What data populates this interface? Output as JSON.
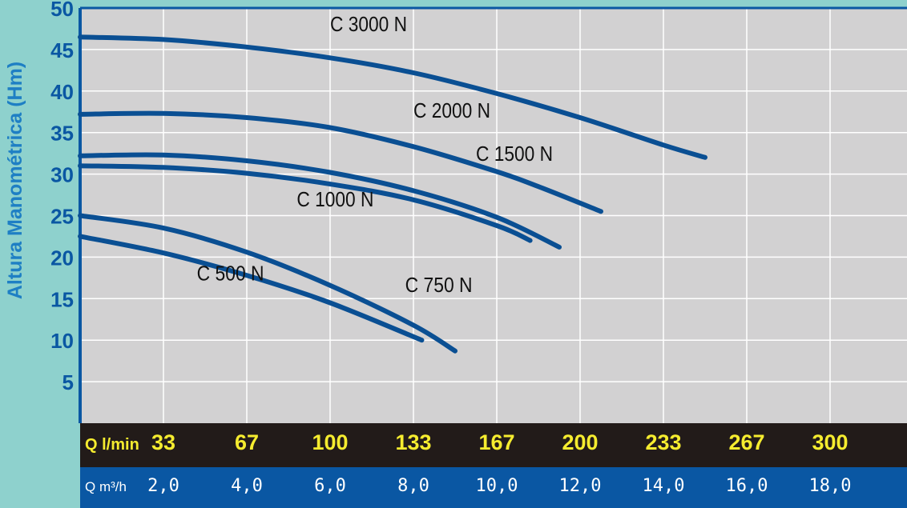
{
  "chart_data": {
    "type": "line",
    "title": "",
    "ylabel": "Altura Manométrica (Hm)",
    "xlabel": "",
    "ylim": [
      0,
      50
    ],
    "xlim": [
      0,
      20
    ],
    "grid": true,
    "yticks": [
      "5",
      "10",
      "15",
      "20",
      "25",
      "30",
      "35",
      "40",
      "45",
      "50"
    ],
    "x_axis_rows": [
      {
        "unit_main": "Q",
        "unit_rest": "l/min",
        "values": [
          "33",
          "67",
          "100",
          "133",
          "167",
          "200",
          "233",
          "267",
          "300"
        ]
      },
      {
        "unit_main": "Q",
        "unit_rest": "m³/h",
        "values": [
          "2,0",
          "4,0",
          "6,0",
          "8,0",
          "10,0",
          "12,0",
          "14,0",
          "16,0",
          "18,0"
        ]
      }
    ],
    "series": [
      {
        "name": "C 3000 N",
        "x": [
          0,
          2,
          4,
          6,
          8,
          10,
          12,
          14,
          15
        ],
        "y": [
          46.5,
          46.2,
          45.3,
          44.0,
          42.2,
          39.7,
          36.8,
          33.5,
          32
        ]
      },
      {
        "name": "C 2000 N",
        "x": [
          0,
          2,
          4,
          6,
          8,
          10,
          11,
          12.5
        ],
        "y": [
          37.2,
          37.3,
          36.8,
          35.6,
          33.3,
          30.3,
          28.5,
          25.5
        ]
      },
      {
        "name": "C 1500 N",
        "x": [
          0,
          2,
          4,
          6,
          8,
          10,
          11.5
        ],
        "y": [
          32.2,
          32.3,
          31.6,
          30.2,
          28.0,
          24.8,
          21.2
        ]
      },
      {
        "name": "C 1000 N",
        "x": [
          0,
          2,
          4,
          6,
          8,
          10,
          10.8
        ],
        "y": [
          31.0,
          30.8,
          30.1,
          28.8,
          26.9,
          23.8,
          22.0
        ]
      },
      {
        "name": "C 750 N",
        "x": [
          0,
          2,
          4,
          6,
          8,
          9
        ],
        "y": [
          25.0,
          23.5,
          20.6,
          16.6,
          11.8,
          8.7
        ]
      },
      {
        "name": "C 500 N",
        "x": [
          0,
          2,
          4,
          6,
          8.2
        ],
        "y": [
          22.5,
          20.5,
          17.8,
          14.5,
          10.0
        ]
      }
    ]
  }
}
